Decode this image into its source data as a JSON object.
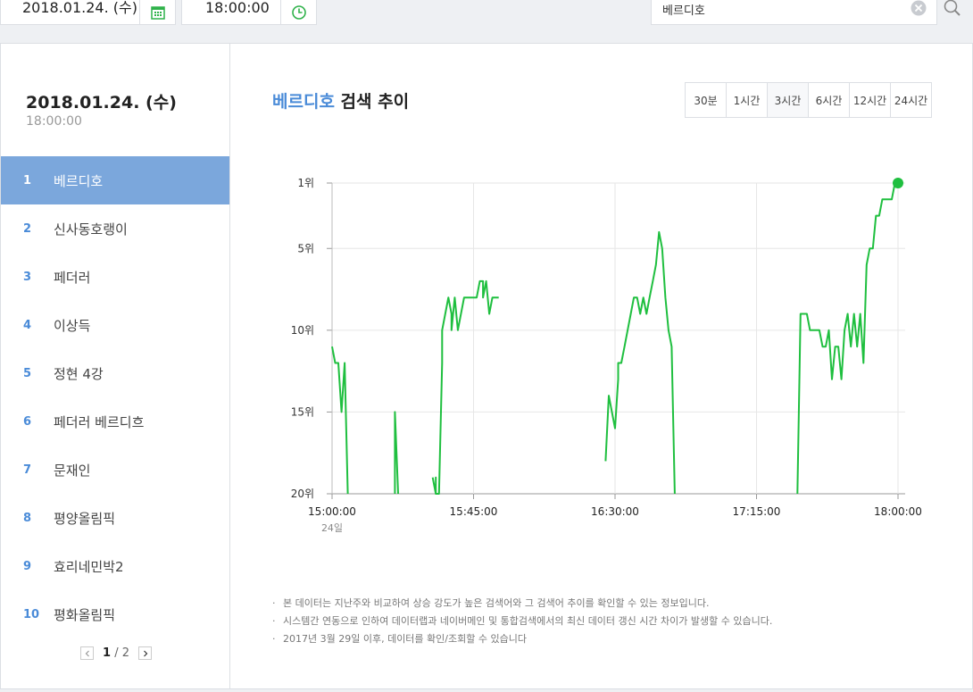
{
  "topbar": {
    "date": "2018.01.24. (수)",
    "time": "18:00:00",
    "search_value": "베르디호",
    "calendar_icon": "calendar-icon",
    "clock_icon": "clock-icon",
    "clear_icon": "clear-icon",
    "search_icon": "search-icon"
  },
  "sidebar": {
    "date": "2018.01.24. (수)",
    "time": "18:00:00",
    "items": [
      {
        "rank": "1",
        "keyword": "베르디호"
      },
      {
        "rank": "2",
        "keyword": "신사동호랭이"
      },
      {
        "rank": "3",
        "keyword": "페더러"
      },
      {
        "rank": "4",
        "keyword": "이상득"
      },
      {
        "rank": "5",
        "keyword": "정현 4강"
      },
      {
        "rank": "6",
        "keyword": "페더러 베르디흐"
      },
      {
        "rank": "7",
        "keyword": "문재인"
      },
      {
        "rank": "8",
        "keyword": "평양올림픽"
      },
      {
        "rank": "9",
        "keyword": "효리네민박2"
      },
      {
        "rank": "10",
        "keyword": "평화올림픽"
      }
    ],
    "active_index": 0,
    "pager": {
      "current": "1",
      "separator": "/",
      "total": "2"
    }
  },
  "main": {
    "title_keyword": "베르디호",
    "title_suffix": " 검색 추이",
    "ranges": [
      "30분",
      "1시간",
      "3시간",
      "6시간",
      "12시간",
      "24시간"
    ],
    "selected_range": 2,
    "notes": [
      "본 데이터는 지난주와 비교하여 상승 강도가 높은 검색어와 그 검색어 추이를 확인할 수 있는 정보입니다.",
      "시스템간 연동으로 인하여 데이터랩과 네이버메인 및 통합검색에서의 최신 데이터 갱신 시간 차이가 발생할 수 있습니다.",
      "2017년 3월 29일 이후, 데이터를 확인/조회할 수 있습니다"
    ]
  },
  "colors": {
    "accent": "#4a8bd8",
    "active_bg": "#7ba7dc",
    "line": "#1fbf3f"
  },
  "chart_data": {
    "type": "line",
    "series": [
      {
        "x": [
          "15:00",
          "15:01",
          "15:02",
          "15:03",
          "15:04",
          "15:05",
          "15:06",
          "15:07",
          "15:08",
          "15:20",
          "15:20",
          "15:21",
          "15:21",
          "15:32",
          "15:33",
          "15:33",
          "15:33",
          "15:34",
          "15:35",
          "15:35",
          "15:36",
          "15:36",
          "15:37",
          "15:38",
          "15:38",
          "15:39",
          "15:40",
          "15:41",
          "15:42",
          "15:43",
          "15:44",
          "15:45",
          "15:46",
          "15:47",
          "15:48",
          "15:48",
          "15:49",
          "15:50",
          "15:51",
          "15:51",
          "15:52",
          "15:53",
          "15:53",
          "15:54",
          "15:55",
          "15:55",
          "15:56",
          "15:57",
          "15:58",
          "15:58",
          "16:27",
          "16:27",
          "16:28",
          "16:29",
          "16:30",
          "16:31",
          "16:31",
          "16:32",
          "16:33",
          "16:34",
          "16:35",
          "16:36",
          "16:37",
          "16:38",
          "16:39",
          "16:40",
          "16:41",
          "16:42",
          "16:43",
          "16:44",
          "16:45",
          "16:46",
          "16:47",
          "16:48",
          "16:49",
          "16:50",
          "16:51",
          "16:52",
          "16:53",
          "16:54",
          "16:55",
          "16:56",
          "16:57",
          "16:58",
          "17:28",
          "17:29",
          "17:30",
          "17:31",
          "17:32",
          "17:33",
          "17:34",
          "17:35",
          "17:36",
          "17:37",
          "17:38",
          "17:39",
          "17:40",
          "17:41",
          "17:42",
          "17:43",
          "17:44",
          "17:45",
          "17:46",
          "17:47",
          "17:48",
          "17:49",
          "17:50",
          "17:51",
          "17:52",
          "17:53",
          "17:54",
          "17:55",
          "17:56",
          "17:57",
          "17:58",
          "17:59",
          "18:00"
        ],
        "y": [
          11,
          12,
          12,
          15,
          12,
          20,
          null,
          null,
          null,
          20,
          15,
          20,
          null,
          19,
          20,
          19,
          20,
          20,
          12,
          10,
          9,
          9,
          8,
          9,
          10,
          8,
          10,
          9,
          8,
          8,
          8,
          8,
          8,
          7,
          7,
          8,
          7,
          9,
          8,
          8,
          8,
          8,
          null,
          null,
          null,
          null,
          null,
          null,
          null,
          null,
          18,
          18,
          14,
          15,
          16,
          13,
          12,
          12,
          11,
          10,
          9,
          8,
          8,
          9,
          8,
          9,
          8,
          7,
          6,
          4,
          5,
          8,
          10,
          11,
          20,
          null,
          null,
          null,
          null,
          null,
          null,
          null,
          null,
          null,
          20,
          9,
          9,
          9,
          10,
          10,
          10,
          10,
          11,
          11,
          10,
          13,
          11,
          11,
          13,
          10,
          9,
          11,
          9,
          11,
          9,
          12,
          6,
          5,
          5,
          3,
          3,
          2,
          2,
          2,
          2,
          1,
          1
        ]
      }
    ],
    "xticks": [
      "15:00:00",
      "15:45:00",
      "16:30:00",
      "17:15:00",
      "18:00:00"
    ],
    "xsub": "24일",
    "yticks": [
      "1위",
      "5위",
      "10위",
      "15위",
      "20위"
    ],
    "ylim": [
      1,
      20
    ],
    "yinverted": true,
    "grid": true,
    "end_marker": true
  }
}
